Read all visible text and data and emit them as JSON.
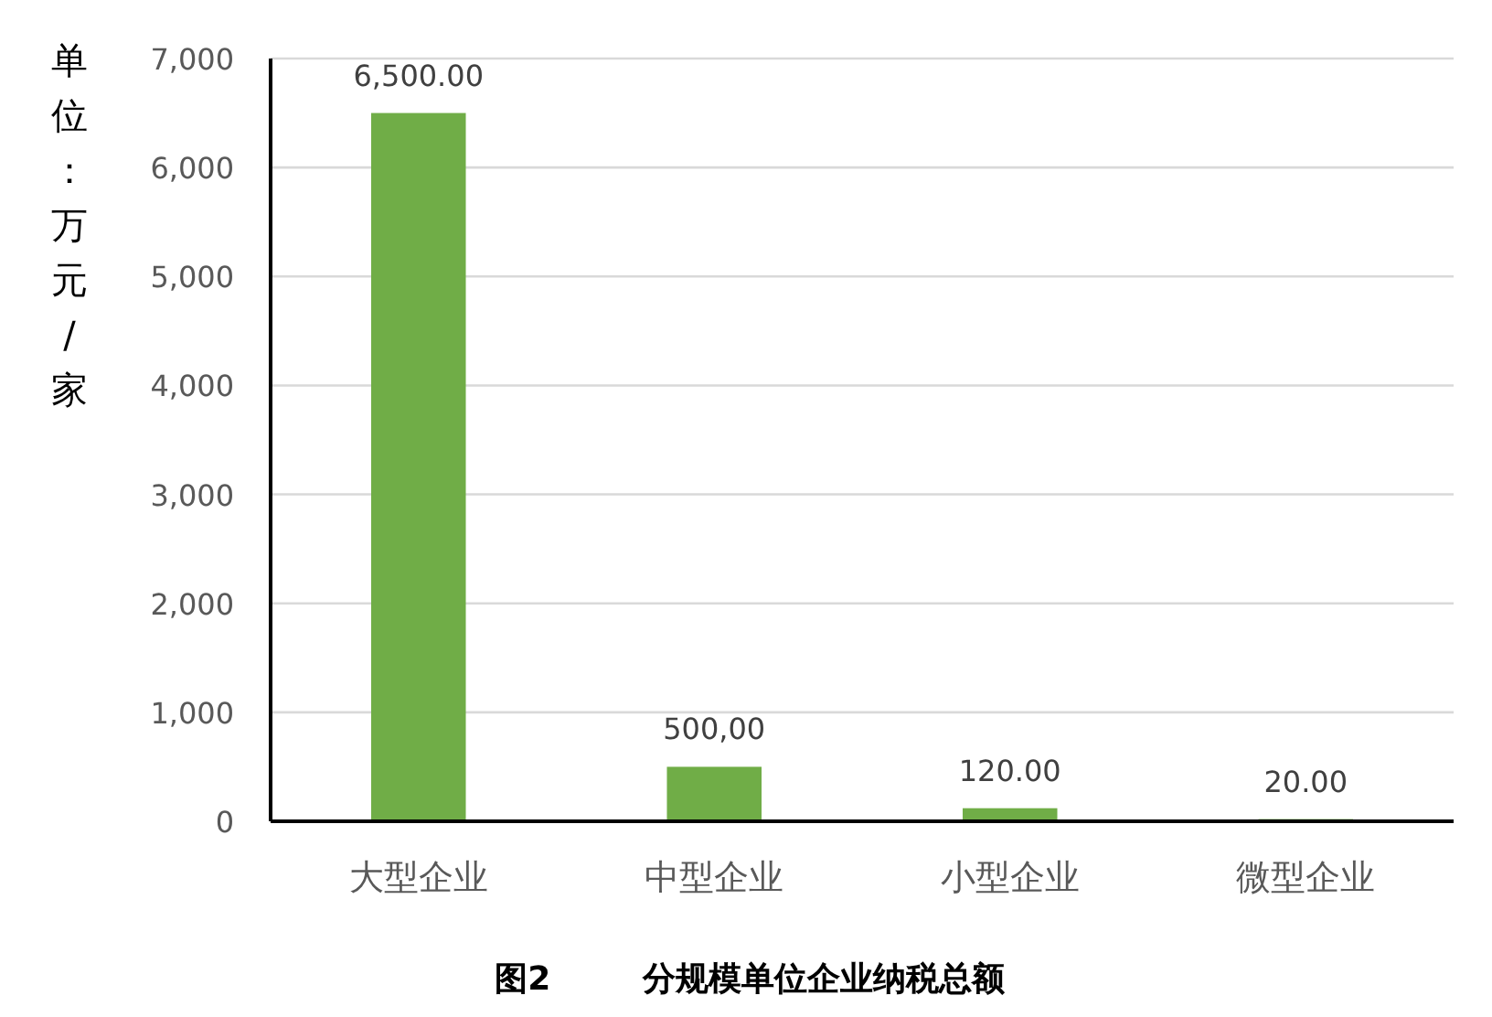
{
  "chart_data": {
    "type": "bar",
    "title": "图2        分规模单位企业纳税总额",
    "ylabel": "单位：万元/家",
    "categories": [
      "大型企业",
      "中型企业",
      "小型企业",
      "微型企业"
    ],
    "values": [
      6500,
      500,
      120,
      20
    ],
    "value_labels": [
      "6,500.00",
      "500,00",
      "120.00",
      "20.00"
    ],
    "color": "#70ad47",
    "ylim": [
      0,
      7000
    ],
    "yticks": [
      {
        "value": 0,
        "label": "0"
      },
      {
        "value": 1000,
        "label": "1,000"
      },
      {
        "value": 2000,
        "label": "2,000"
      },
      {
        "value": 3000,
        "label": "3,000"
      },
      {
        "value": 4000,
        "label": "4,000"
      },
      {
        "value": 5000,
        "label": "5,000"
      },
      {
        "value": 6000,
        "label": "6,000"
      },
      {
        "value": 7000,
        "label": "7,000"
      }
    ],
    "grid": "y"
  }
}
